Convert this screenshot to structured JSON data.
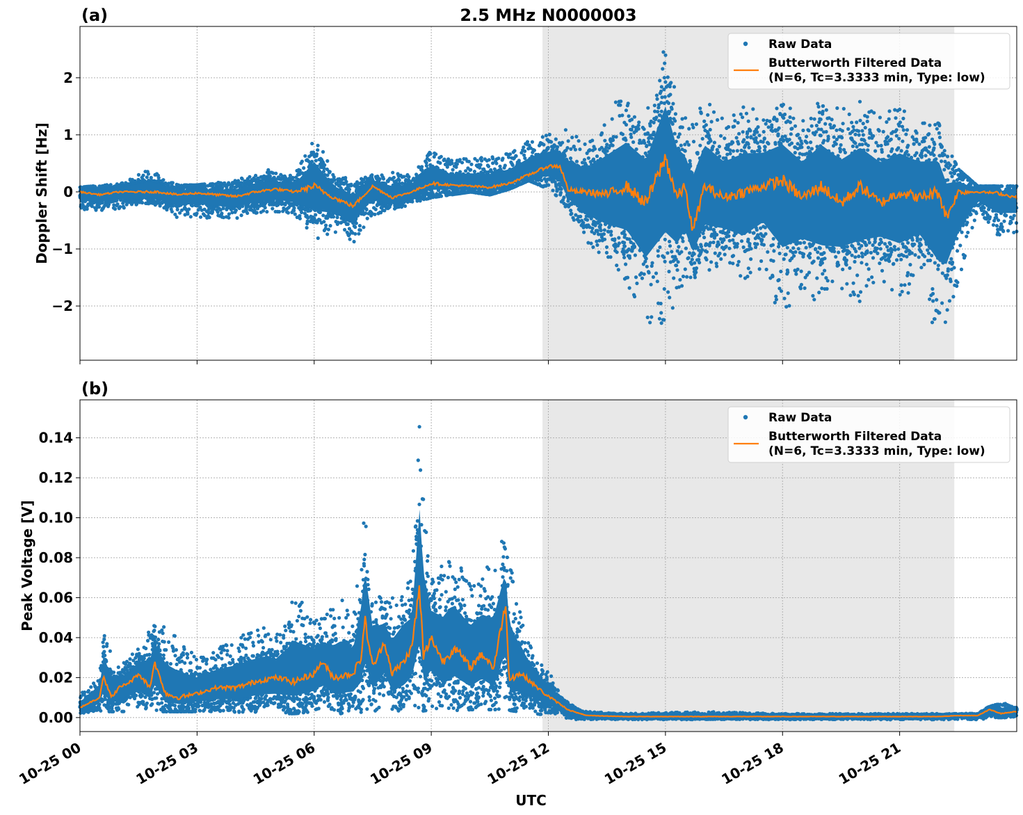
{
  "chart_data": [
    {
      "type": "scatter",
      "panel": "(a)",
      "title": "2.5 MHz N0000003",
      "ylabel": "Doppler Shift [Hz]",
      "xlabel": "",
      "x_tick_labels": [],
      "ylim": [
        -2.95,
        2.9
      ],
      "yticks": [
        -2,
        -1,
        0,
        1,
        2
      ],
      "ytick_labels": [
        "−2",
        "−1",
        "0",
        "1",
        "2"
      ],
      "xlim_hours": [
        0,
        24
      ],
      "xticks_hours": [
        0,
        3,
        6,
        9,
        12,
        15,
        18,
        21
      ],
      "grid": true,
      "legend_placement": "upper right",
      "shaded_region_hours": [
        11.85,
        22.4
      ],
      "shaded_color": "#e8e8e8",
      "series": [
        {
          "name": "Raw Data",
          "style": "points",
          "color": "#1f77b4",
          "x_hours": [
            0,
            1,
            1.8,
            2.5,
            3,
            4,
            4.7,
            5.5,
            6,
            6.5,
            7,
            7.5,
            8,
            8.5,
            9,
            9.5,
            10,
            10.5,
            11,
            11.5,
            12,
            12.5,
            13,
            13.5,
            14,
            14.5,
            15,
            15.5,
            16,
            16.5,
            17,
            17.5,
            18,
            18.5,
            19,
            19.5,
            20,
            20.5,
            21,
            21.5,
            22,
            22.5,
            23,
            23.5,
            24
          ],
          "upper": [
            0.08,
            0.15,
            0.4,
            0.12,
            0.12,
            0.2,
            0.4,
            0.3,
            1.05,
            0.35,
            0.2,
            0.3,
            0.35,
            0.3,
            0.8,
            0.55,
            0.6,
            0.6,
            0.7,
            0.95,
            1.0,
            1.1,
            0.9,
            1.5,
            1.8,
            1.5,
            2.6,
            1.3,
            1.7,
            1.3,
            1.5,
            1.4,
            1.6,
            1.3,
            1.7,
            1.5,
            1.6,
            1.4,
            1.5,
            1.3,
            1.2,
            0.4,
            0.1,
            0.1,
            0.1
          ],
          "lower": [
            -0.35,
            -0.3,
            -0.2,
            -0.45,
            -0.45,
            -0.5,
            -0.35,
            -0.4,
            -0.85,
            -0.7,
            -0.9,
            -0.4,
            -0.35,
            -0.2,
            -0.1,
            -0.05,
            0.0,
            -0.05,
            0.05,
            0.2,
            0.05,
            -0.3,
            -0.9,
            -1.2,
            -1.6,
            -2.3,
            -2.3,
            -1.6,
            -1.4,
            -1.3,
            -1.7,
            -1.3,
            -2.4,
            -1.7,
            -2.2,
            -1.9,
            -2.0,
            -1.5,
            -2.0,
            -1.5,
            -2.7,
            -1.6,
            -0.3,
            -0.8,
            -0.7
          ]
        },
        {
          "name": "Butterworth Filtered Data\n(N=6, Tc=3.3333 min, Type: low)",
          "style": "line",
          "color": "#ff7f0e",
          "x_hours": [
            0,
            0.5,
            1,
            1.5,
            2,
            2.5,
            3,
            3.5,
            4,
            4.5,
            5,
            5.5,
            6,
            6.5,
            7,
            7.5,
            8,
            8.5,
            9,
            9.5,
            10,
            10.5,
            11,
            11.5,
            12,
            12.3,
            12.5,
            12.7,
            13,
            13.5,
            14,
            14.5,
            15,
            15.3,
            15.5,
            15.7,
            16,
            16.5,
            17,
            17.5,
            18,
            18.5,
            19,
            19.5,
            20,
            20.5,
            21,
            21.5,
            22,
            22.2,
            22.5,
            23,
            23.5,
            24
          ],
          "y": [
            0.0,
            -0.05,
            0.0,
            0.0,
            0.0,
            -0.05,
            -0.02,
            -0.05,
            -0.08,
            0.0,
            0.05,
            0.0,
            0.1,
            -0.1,
            -0.25,
            0.1,
            -0.1,
            0.0,
            0.15,
            0.12,
            0.1,
            0.08,
            0.15,
            0.3,
            0.45,
            0.45,
            0.05,
            0.0,
            0.0,
            -0.05,
            0.1,
            -0.2,
            0.6,
            -0.1,
            0.1,
            -0.7,
            0.1,
            -0.1,
            0.0,
            0.1,
            0.2,
            -0.1,
            0.1,
            -0.2,
            0.1,
            -0.2,
            0.0,
            -0.1,
            0.0,
            -0.45,
            0.0,
            0.0,
            -0.02,
            -0.1
          ]
        }
      ]
    },
    {
      "type": "scatter",
      "panel": "(b)",
      "title": "",
      "ylabel": "Peak Voltage [V]",
      "xlabel": "UTC",
      "ylim": [
        -0.007,
        0.159
      ],
      "yticks": [
        0.0,
        0.02,
        0.04,
        0.06,
        0.08,
        0.1,
        0.12,
        0.14
      ],
      "ytick_labels": [
        "0.00",
        "0.02",
        "0.04",
        "0.06",
        "0.08",
        "0.10",
        "0.12",
        "0.14"
      ],
      "xlim_hours": [
        0,
        24
      ],
      "xticks_hours": [
        0,
        3,
        6,
        9,
        12,
        15,
        18,
        21
      ],
      "x_tick_labels": [
        "10-25 00",
        "10-25 03",
        "10-25 06",
        "10-25 09",
        "10-25 12",
        "10-25 15",
        "10-25 18",
        "10-25 21"
      ],
      "grid": true,
      "legend_placement": "upper right",
      "shaded_region_hours": [
        11.85,
        22.4
      ],
      "shaded_color": "#e8e8e8",
      "series": [
        {
          "name": "Raw Data",
          "style": "points",
          "color": "#1f77b4",
          "x_hours": [
            0,
            0.5,
            0.6,
            1,
            1.5,
            1.9,
            2.5,
            3,
            3.5,
            4,
            4.7,
            5,
            5.5,
            6,
            6.2,
            6.7,
            7,
            7.3,
            7.5,
            7.8,
            8,
            8.3,
            8.5,
            8.7,
            9,
            9.5,
            10,
            10.5,
            10.9,
            11.2,
            11.6,
            12.0,
            12.3,
            12.7,
            13,
            14,
            16,
            18,
            20,
            22,
            22.5,
            23,
            23.5,
            24
          ],
          "upper": [
            0.012,
            0.02,
            0.043,
            0.025,
            0.035,
            0.05,
            0.04,
            0.03,
            0.035,
            0.04,
            0.045,
            0.04,
            0.063,
            0.05,
            0.05,
            0.06,
            0.05,
            0.104,
            0.07,
            0.058,
            0.06,
            0.07,
            0.068,
            0.152,
            0.07,
            0.083,
            0.072,
            0.078,
            0.092,
            0.06,
            0.032,
            0.025,
            0.012,
            0.005,
            0.003,
            0.002,
            0.003,
            0.002,
            0.002,
            0.002,
            0.002,
            0.002,
            0.008,
            0.006
          ],
          "lower": [
            0.002,
            0.003,
            0.003,
            0.003,
            0.003,
            0.003,
            0.003,
            0.003,
            0.002,
            0.002,
            0.003,
            0.002,
            0.002,
            0.003,
            0.002,
            0.002,
            0.002,
            0.003,
            0.002,
            0.003,
            0.003,
            0.002,
            0.003,
            0.003,
            0.004,
            0.003,
            0.004,
            0.004,
            0.004,
            0.003,
            0.002,
            0.001,
            0.0,
            -0.001,
            -0.001,
            -0.001,
            -0.001,
            -0.001,
            -0.001,
            -0.001,
            -0.001,
            -0.001,
            0.0,
            0.0
          ]
        },
        {
          "name": "Butterworth Filtered Data\n(N=6, Tc=3.3333 min, Type: low)",
          "style": "line",
          "color": "#ff7f0e",
          "x_hours": [
            0,
            0.3,
            0.5,
            0.6,
            0.8,
            1,
            1.3,
            1.5,
            1.8,
            1.9,
            2.2,
            2.5,
            3,
            3.5,
            4,
            4.5,
            5,
            5.5,
            6,
            6.2,
            6.5,
            7,
            7.2,
            7.3,
            7.5,
            7.8,
            8,
            8.3,
            8.5,
            8.7,
            8.8,
            9,
            9.3,
            9.6,
            10,
            10.3,
            10.6,
            10.9,
            11.0,
            11.3,
            11.6,
            11.9,
            12.2,
            12.5,
            12.8,
            13,
            14,
            16,
            18,
            20,
            22,
            22.5,
            23,
            23.3,
            23.6,
            24
          ],
          "y": [
            0.005,
            0.008,
            0.01,
            0.021,
            0.01,
            0.015,
            0.018,
            0.022,
            0.015,
            0.028,
            0.012,
            0.01,
            0.012,
            0.015,
            0.015,
            0.018,
            0.02,
            0.018,
            0.022,
            0.028,
            0.02,
            0.022,
            0.03,
            0.049,
            0.025,
            0.038,
            0.022,
            0.028,
            0.035,
            0.065,
            0.03,
            0.04,
            0.028,
            0.035,
            0.025,
            0.032,
            0.025,
            0.057,
            0.02,
            0.022,
            0.017,
            0.012,
            0.008,
            0.004,
            0.002,
            0.001,
            0.0005,
            0.0005,
            0.0005,
            0.0005,
            0.0005,
            0.001,
            0.001,
            0.004,
            0.002,
            0.003
          ]
        }
      ]
    }
  ]
}
